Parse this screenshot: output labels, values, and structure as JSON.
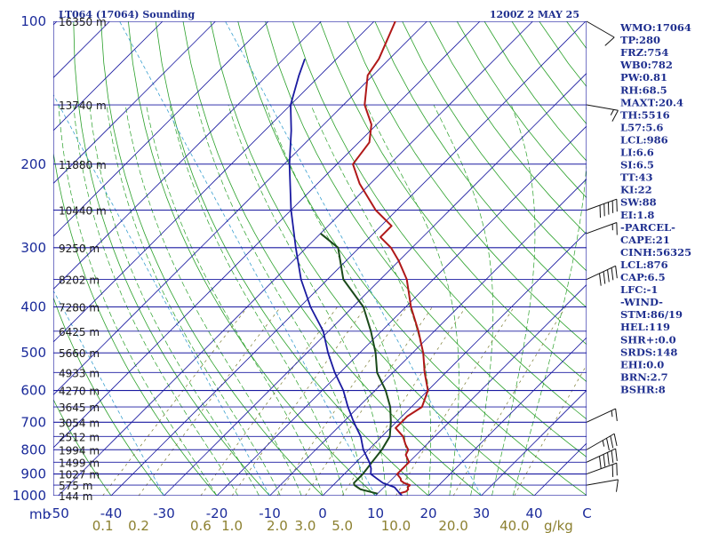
{
  "header": {
    "station": "LT064 (17064) Sounding",
    "time": "1200Z  2 MAY 25"
  },
  "indices": [
    "WMO:17064",
    "TP:280",
    "FRZ:754",
    "WB0:782",
    "PW:0.81",
    "RH:68.5",
    "MAXT:20.4",
    "TH:5516",
    "L57:5.6",
    "LCL:986",
    "LI:6.6",
    "SI:6.5",
    "TT:43",
    "KI:22",
    "SW:88",
    "EI:1.8",
    "-PARCEL-",
    "CAPE:21",
    "CINH:56325",
    "LCL:876",
    "CAP:6.5",
    "LFC:-1",
    "-WIND-",
    "STM:86/19",
    "HEL:119",
    "SHR+:0.0",
    "SRDS:148",
    "EHI:0.0",
    "BRN:2.7",
    "BSHR:8"
  ],
  "colors": {
    "isobar": "#1a1aa0",
    "isotherm": "#1a1aa0",
    "dry_adiabat": "#2aa02a",
    "moist_adiabat": "#2aa02a",
    "mixing_ratio": "#7a7a30",
    "dewpoint_lines": "#3aa0d0",
    "temperature": "#b01818",
    "dewpoint": "#1a4a1a",
    "parcel": "#1a1aa0",
    "text": "#1f2f8f"
  },
  "chart_data": {
    "type": "line",
    "chart_kind": "skew-T log-P sounding",
    "xlabel": "",
    "ylabel": "mb",
    "x_unit_right": "C",
    "mixing_ratio_unit": "g/kg",
    "ylim": [
      1000,
      100
    ],
    "y_scale": "log",
    "xlim": [
      -50,
      50
    ],
    "pressure_levels": [
      100,
      200,
      300,
      400,
      500,
      600,
      700,
      800,
      900,
      1000
    ],
    "temperature_ticks": [
      -50,
      -40,
      -30,
      -20,
      -10,
      0,
      10,
      20,
      30,
      40,
      50
    ],
    "temperature_tick_labels": [
      "-50",
      "-40",
      "-30",
      "-20",
      "-10",
      "0",
      "10",
      "20",
      "30",
      "40",
      "C"
    ],
    "mixing_ratio_ticks": [
      0.1,
      0.2,
      0.6,
      1.0,
      2.0,
      3.0,
      5.0,
      10.0,
      20.0,
      40.0
    ],
    "mixing_ratio_tick_labels": [
      "0.1",
      "0.2",
      "0.6",
      "1.0",
      "2.0",
      "3.0",
      "5.0",
      "10.0",
      "20.0",
      "40.0"
    ],
    "height_labels": [
      {
        "p": 100,
        "label": "16350 m"
      },
      {
        "p": 150,
        "label": "13740 m"
      },
      {
        "p": 200,
        "label": "11880 m"
      },
      {
        "p": 250,
        "label": "10440 m"
      },
      {
        "p": 300,
        "label": "9250 m"
      },
      {
        "p": 350,
        "label": "8202 m"
      },
      {
        "p": 400,
        "label": "7280 m"
      },
      {
        "p": 450,
        "label": "6425 m"
      },
      {
        "p": 500,
        "label": "5660 m"
      },
      {
        "p": 550,
        "label": "4933 m"
      },
      {
        "p": 600,
        "label": "4270 m"
      },
      {
        "p": 650,
        "label": "3645 m"
      },
      {
        "p": 700,
        "label": "3054 m"
      },
      {
        "p": 750,
        "label": "2512 m"
      },
      {
        "p": 800,
        "label": "1994 m"
      },
      {
        "p": 850,
        "label": "1499 m"
      },
      {
        "p": 900,
        "label": "1027 m"
      },
      {
        "p": 950,
        "label": "575 m"
      },
      {
        "p": 1000,
        "label": "144 m"
      }
    ],
    "series": [
      {
        "role": "temperature",
        "points": [
          [
            990,
            14
          ],
          [
            980,
            15
          ],
          [
            970,
            15
          ],
          [
            960,
            14.5
          ],
          [
            950,
            14.5
          ],
          [
            940,
            13
          ],
          [
            930,
            12
          ],
          [
            920,
            11.5
          ],
          [
            900,
            10
          ],
          [
            880,
            10
          ],
          [
            850,
            10
          ],
          [
            820,
            8
          ],
          [
            800,
            7.5
          ],
          [
            780,
            6
          ],
          [
            750,
            4
          ],
          [
            720,
            1
          ],
          [
            700,
            1
          ],
          [
            680,
            1
          ],
          [
            650,
            2
          ],
          [
            600,
            0
          ],
          [
            550,
            -4
          ],
          [
            500,
            -8
          ],
          [
            450,
            -13
          ],
          [
            400,
            -19
          ],
          [
            350,
            -25
          ],
          [
            320,
            -30
          ],
          [
            300,
            -34
          ],
          [
            285,
            -38
          ],
          [
            270,
            -38
          ],
          [
            250,
            -44
          ],
          [
            220,
            -52
          ],
          [
            200,
            -57
          ],
          [
            180,
            -58
          ],
          [
            165,
            -61
          ],
          [
            150,
            -66
          ],
          [
            130,
            -71
          ],
          [
            120,
            -72
          ],
          [
            100,
            -76
          ]
        ]
      },
      {
        "role": "dewpoint",
        "points": [
          [
            990,
            10
          ],
          [
            980,
            8
          ],
          [
            970,
            6
          ],
          [
            960,
            5
          ],
          [
            950,
            4
          ],
          [
            940,
            3.5
          ],
          [
            920,
            3.5
          ],
          [
            900,
            3.5
          ],
          [
            850,
            3
          ],
          [
            800,
            2.5
          ],
          [
            750,
            1.5
          ],
          [
            700,
            -1
          ],
          [
            650,
            -4
          ],
          [
            600,
            -8
          ],
          [
            550,
            -13
          ],
          [
            500,
            -17
          ],
          [
            450,
            -22
          ],
          [
            400,
            -28
          ],
          [
            350,
            -37
          ],
          [
            300,
            -44
          ],
          [
            280,
            -50
          ]
        ]
      },
      {
        "role": "parcel",
        "points": [
          [
            1000,
            15
          ],
          [
            980,
            13.5
          ],
          [
            960,
            12
          ],
          [
            940,
            9
          ],
          [
            920,
            7
          ],
          [
            900,
            5
          ],
          [
            876,
            4
          ],
          [
            850,
            2.5
          ],
          [
            800,
            -1
          ],
          [
            750,
            -4
          ],
          [
            700,
            -8
          ],
          [
            650,
            -12
          ],
          [
            600,
            -16
          ],
          [
            550,
            -21
          ],
          [
            500,
            -26
          ],
          [
            450,
            -31
          ],
          [
            400,
            -38
          ],
          [
            350,
            -45
          ],
          [
            300,
            -52
          ],
          [
            250,
            -60
          ],
          [
            200,
            -69
          ],
          [
            170,
            -75
          ],
          [
            150,
            -80
          ],
          [
            130,
            -84
          ],
          [
            120,
            -86
          ]
        ]
      }
    ],
    "wind_barbs": [
      {
        "p": 100,
        "dir": 300,
        "kt": 10
      },
      {
        "p": 150,
        "dir": 280,
        "kt": 15
      },
      {
        "p": 250,
        "dir": 250,
        "kt": 50
      },
      {
        "p": 280,
        "dir": 250,
        "kt": 15
      },
      {
        "p": 350,
        "dir": 245,
        "kt": 50
      },
      {
        "p": 700,
        "dir": 245,
        "kt": 15
      },
      {
        "p": 800,
        "dir": 240,
        "kt": 35
      },
      {
        "p": 850,
        "dir": 245,
        "kt": 50
      },
      {
        "p": 900,
        "dir": 250,
        "kt": 20
      },
      {
        "p": 950,
        "dir": 260,
        "kt": 10
      }
    ]
  }
}
